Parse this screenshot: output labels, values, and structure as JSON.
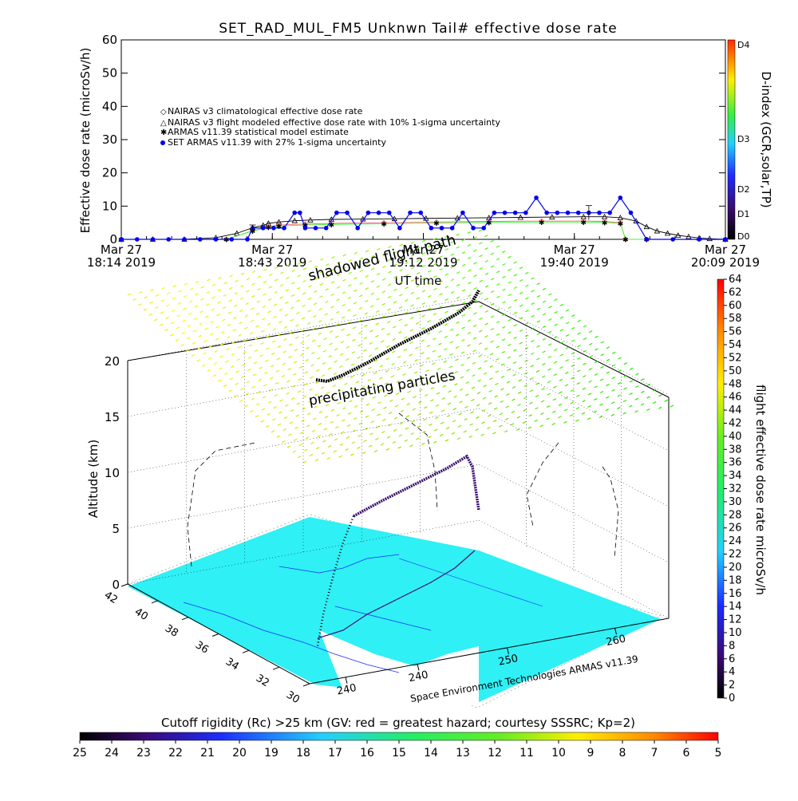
{
  "title": "SET_RAD_MUL_FM5 Unknwn Tail#  effective dose rate",
  "colors": {
    "nairas_clim": "#ff6a6a",
    "nairas_flight": "#000000",
    "armas_stat": "#33ff33",
    "set_armas": "#0000ee",
    "land": "#2ff0f5",
    "flight_path": "#000000",
    "flight_path_low": "#3a1070"
  },
  "chart_data": [
    {
      "type": "line",
      "ylabel": "Effective dose rate (microSv/h)",
      "xlabel": "UT time",
      "ylim": [
        0,
        60
      ],
      "yticks": [
        "0",
        "10",
        "20",
        "30",
        "40",
        "50",
        "60"
      ],
      "xtick_labels": [
        {
          "date": "Mar 27",
          "time": "18:14 2019"
        },
        {
          "date": "Mar 27",
          "time": "18:43 2019"
        },
        {
          "date": "Mar 27",
          "time": "19:12 2019"
        },
        {
          "date": "Mar 27",
          "time": "19:40 2019"
        },
        {
          "date": "Mar 27",
          "time": "20:09 2019"
        }
      ],
      "x_range_minutes": [
        0,
        115
      ],
      "legend": [
        "NAIRAS v3 climatological effective dose rate",
        "NAIRAS v3 flight modeled effective dose rate with 10% 1-sigma uncertainty",
        "ARMAS v11.39 statistical model estimate",
        "SET ARMAS v11.39 with 27% 1-sigma uncertainty"
      ],
      "series": [
        {
          "name": "NAIRAS v3 flight modeled effective dose rate with 10% 1-sigma uncertainty",
          "x": [
            0,
            6,
            12,
            18,
            22,
            25,
            27,
            28,
            30,
            33,
            36,
            40,
            46,
            52,
            58,
            64,
            70,
            76,
            82,
            88,
            92,
            95,
            98,
            100,
            102,
            104,
            106,
            108,
            110,
            112,
            115
          ],
          "values": [
            0,
            0,
            0,
            0.5,
            1.8,
            3.5,
            4.2,
            4.8,
            5.2,
            5.6,
            5.8,
            6.0,
            6.1,
            6.2,
            6.3,
            6.4,
            6.5,
            6.6,
            6.7,
            6.8,
            6.8,
            6.5,
            5.5,
            3.8,
            2.5,
            1.8,
            1.2,
            0.8,
            0.4,
            0.2,
            0
          ]
        },
        {
          "name": "NAIRAS v3 climatological effective dose rate",
          "x": [
            0,
            20,
            25,
            28,
            30,
            35,
            40,
            50,
            60,
            70,
            80,
            88,
            92,
            95,
            96,
            100,
            115
          ],
          "values": [
            0,
            0,
            2.6,
            3.8,
            4.3,
            4.6,
            4.8,
            5.0,
            5.2,
            5.4,
            5.5,
            5.5,
            5.4,
            5.0,
            0,
            0,
            0
          ]
        },
        {
          "name": "ARMAS v11.39 statistical model estimate",
          "x": [
            0,
            20,
            25,
            28,
            30,
            35,
            40,
            50,
            60,
            70,
            80,
            88,
            92,
            95,
            96,
            100,
            115
          ],
          "values": [
            0,
            0,
            2.5,
            3.6,
            4.0,
            4.3,
            4.5,
            4.7,
            4.9,
            5.1,
            5.2,
            5.2,
            5.1,
            4.8,
            0,
            0,
            0
          ]
        },
        {
          "name": "SET ARMAS v11.39 with 27% 1-sigma uncertainty",
          "x": [
            0,
            3,
            6,
            9,
            12,
            15,
            18,
            21,
            24,
            25,
            27,
            29,
            31,
            33,
            34,
            35,
            37,
            39,
            41,
            43,
            45,
            47,
            49,
            51,
            53,
            55,
            57,
            59,
            61,
            63,
            65,
            67,
            69,
            71,
            73,
            75,
            77,
            79,
            81,
            83,
            85,
            87,
            89,
            91,
            93,
            95,
            97,
            100,
            105,
            110,
            115
          ],
          "values": [
            0,
            0,
            0,
            0,
            0,
            0,
            0,
            0,
            0,
            3.4,
            3.4,
            3.4,
            3.4,
            8.0,
            8.0,
            3.4,
            3.4,
            3.4,
            8.0,
            8.0,
            3.4,
            8.0,
            8.0,
            8.0,
            3.4,
            8.0,
            8.0,
            3.4,
            3.4,
            3.4,
            8.0,
            3.4,
            3.4,
            8.0,
            8.0,
            8.0,
            8.0,
            12.5,
            8.0,
            8.0,
            8.0,
            8.0,
            8.0,
            8.0,
            8.0,
            12.5,
            8.0,
            0,
            0,
            0,
            0
          ]
        }
      ],
      "colorbar": {
        "label": "D-index (GCR,solar,TP)",
        "ticks": [
          "D0",
          "D1",
          "D2",
          "D3",
          "D4"
        ]
      }
    },
    {
      "type": "scatter",
      "ylabel": "Altitude (km)",
      "zticks": [
        "0",
        "5",
        "10",
        "15",
        "20"
      ],
      "lat_ticks": [
        "42",
        "40",
        "38",
        "36",
        "34",
        "32",
        "30"
      ],
      "lon_ticks": [
        "240",
        "240",
        "250",
        "260"
      ],
      "annotations": [
        "shadowed flight path",
        "precipitating particles"
      ],
      "footer": "Space Environment Technologies ARMAS v11.39",
      "colorbar": {
        "label": "flight effective dose rate microSv/h",
        "range": [
          0,
          64
        ],
        "ticks": [
          "0",
          "2",
          "4",
          "6",
          "8",
          "10",
          "12",
          "14",
          "16",
          "18",
          "20",
          "22",
          "24",
          "26",
          "28",
          "30",
          "32",
          "34",
          "36",
          "38",
          "40",
          "42",
          "44",
          "46",
          "48",
          "50",
          "52",
          "54",
          "56",
          "58",
          "60",
          "62",
          "64"
        ]
      }
    }
  ],
  "bottom_colorbar": {
    "label": "Cutoff rigidity (Rc) >25 km (GV: red = greatest hazard; courtesy SSSRC; Kp=2)",
    "ticks": [
      "25",
      "24",
      "23",
      "22",
      "21",
      "20",
      "19",
      "18",
      "17",
      "16",
      "15",
      "14",
      "13",
      "12",
      "11",
      "10",
      "9",
      "8",
      "7",
      "6",
      "5"
    ]
  }
}
